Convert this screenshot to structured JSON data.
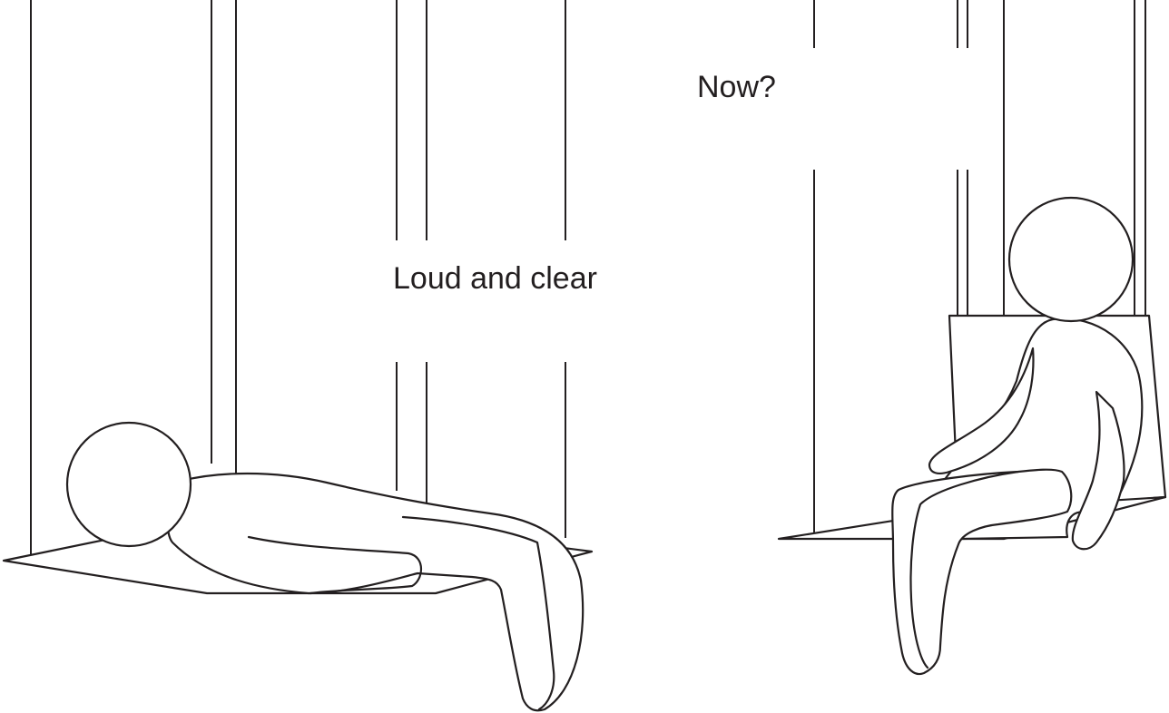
{
  "scene": {
    "left_panel": {
      "caption": "Loud and clear"
    },
    "right_panel": {
      "caption": "Now?"
    }
  }
}
